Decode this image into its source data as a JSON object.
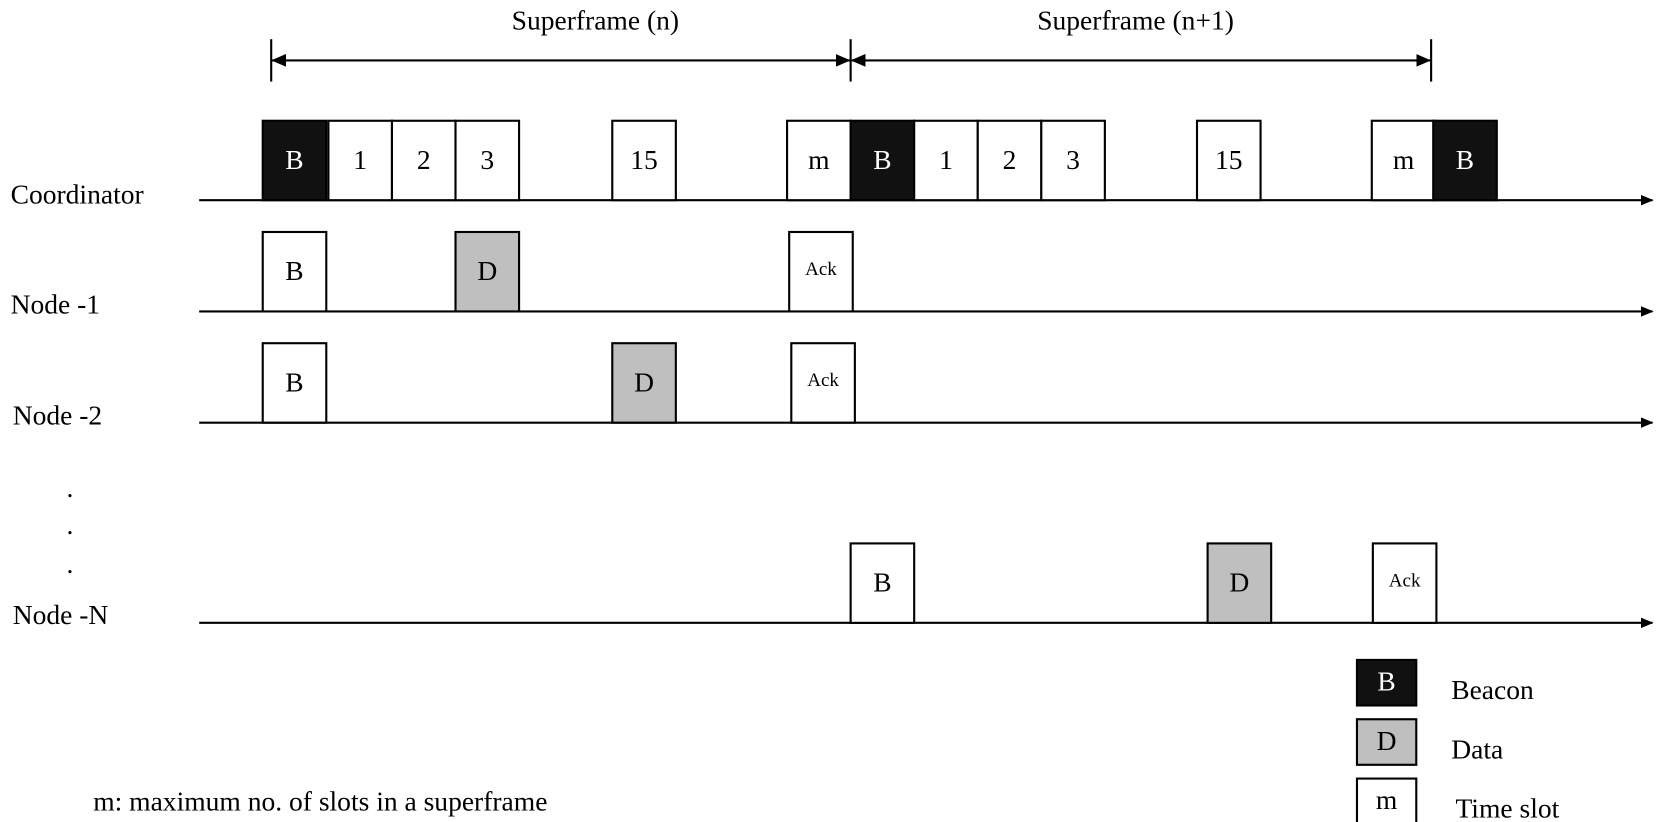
{
  "superframes": [
    {
      "label": "Superframe (n)"
    },
    {
      "label": "Superframe (n+1)"
    }
  ],
  "rows": [
    {
      "label": "Coordinator",
      "slots": [
        "B",
        "1",
        "2",
        "3",
        "15",
        "m",
        "B",
        "1",
        "2",
        "3",
        "15",
        "m",
        "B"
      ]
    },
    {
      "label": "Node -1",
      "slots": [
        "B",
        "D",
        "Ack"
      ]
    },
    {
      "label": "Node -2",
      "slots": [
        "B",
        "D",
        "Ack"
      ]
    },
    {
      "label": "Node -N",
      "slots": [
        "B",
        "D",
        "Ack"
      ]
    }
  ],
  "dots": [
    ".",
    ".",
    "."
  ],
  "legend": [
    {
      "symbol": "B",
      "label": "Beacon"
    },
    {
      "symbol": "D",
      "label": "Data"
    },
    {
      "symbol": "m",
      "label": "Time slot"
    }
  ],
  "footnote": "m: maximum no. of slots in a superframe"
}
